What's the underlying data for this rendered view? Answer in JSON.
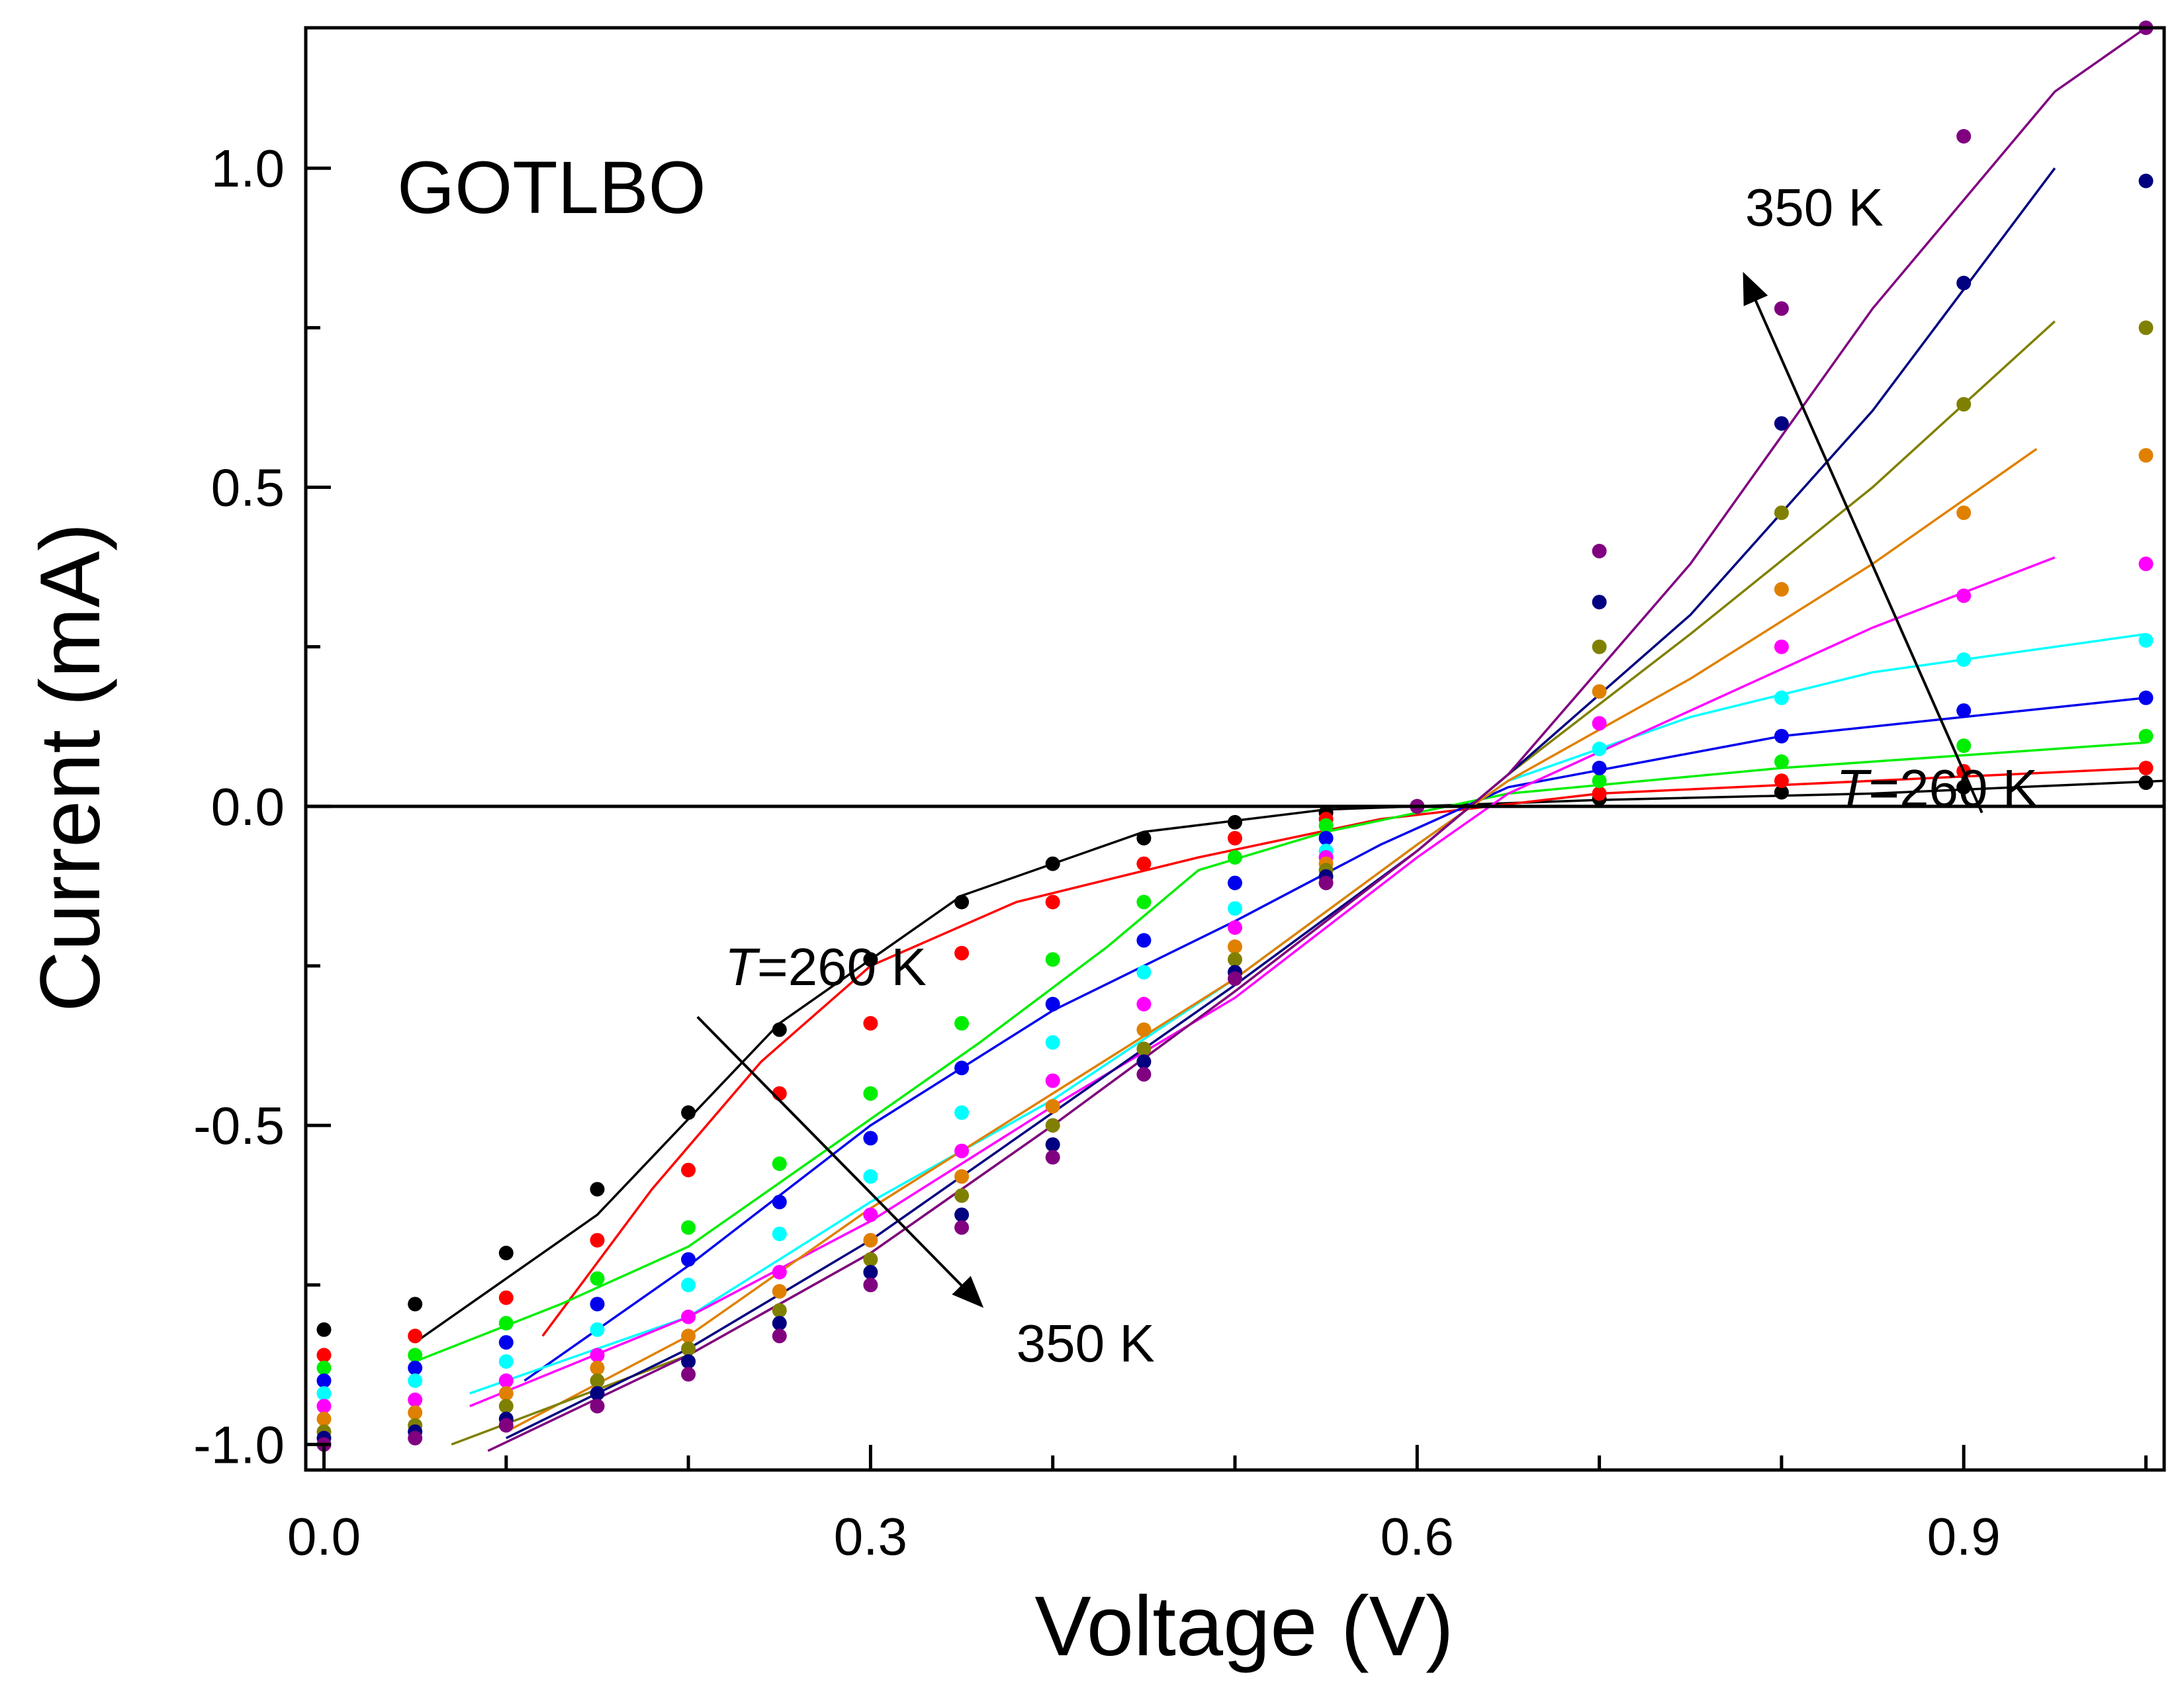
{
  "chart_data": {
    "type": "scatter",
    "title": "",
    "xlabel": "Voltage (V)",
    "ylabel": "Current (mA)",
    "xlim": [
      -0.01,
      1.01
    ],
    "ylim": [
      -1.04,
      1.22
    ],
    "xticks": [
      0.0,
      0.3,
      0.6,
      0.9
    ],
    "xtick_labels": [
      "0.0",
      "0.3",
      "0.6",
      "0.9"
    ],
    "yticks": [
      -1.0,
      -0.5,
      0.0,
      0.5,
      1.0
    ],
    "ytick_labels": [
      "-1.0",
      "-0.5",
      "0.0",
      "0.5",
      "1.0"
    ],
    "grid": false,
    "legend": "none",
    "zero_line": true,
    "panel_label": "GOTLBO",
    "annotations": [
      {
        "italic": "T",
        "rest": "=260 K",
        "at": {
          "x": 0.22,
          "y": -0.28
        }
      },
      {
        "italic": "",
        "rest": "350 K",
        "at": {
          "x": 0.38,
          "y": -0.87
        }
      },
      {
        "italic": "",
        "rest": "350 K",
        "at": {
          "x": 0.78,
          "y": 0.91
        }
      },
      {
        "italic": "T",
        "rest": "=260 K",
        "at": {
          "x": 0.83,
          "y": 0.0
        }
      }
    ],
    "arrows": [
      {
        "from": {
          "x": 0.205,
          "y": -0.33
        },
        "to": {
          "x": 0.36,
          "y": -0.78
        }
      },
      {
        "from": {
          "x": 0.91,
          "y": -0.01
        },
        "to": {
          "x": 0.78,
          "y": 0.83
        }
      }
    ],
    "series": [
      {
        "color": "#000000",
        "values": [
          [
            0.0,
            -0.82
          ],
          [
            0.05,
            -0.78
          ],
          [
            0.1,
            -0.7
          ],
          [
            0.15,
            -0.6
          ],
          [
            0.2,
            -0.48
          ],
          [
            0.25,
            -0.35
          ],
          [
            0.3,
            -0.24
          ],
          [
            0.35,
            -0.15
          ],
          [
            0.4,
            -0.09
          ],
          [
            0.45,
            -0.05
          ],
          [
            0.5,
            -0.025
          ],
          [
            0.55,
            -0.01
          ],
          [
            0.6,
            0.0
          ],
          [
            0.7,
            0.012
          ],
          [
            0.8,
            0.022
          ],
          [
            0.9,
            0.03
          ],
          [
            1.0,
            0.037
          ]
        ]
      },
      {
        "color": "#ff0000",
        "values": [
          [
            0.0,
            -0.86
          ],
          [
            0.05,
            -0.83
          ],
          [
            0.1,
            -0.77
          ],
          [
            0.15,
            -0.68
          ],
          [
            0.2,
            -0.57
          ],
          [
            0.25,
            -0.45
          ],
          [
            0.3,
            -0.34
          ],
          [
            0.35,
            -0.23
          ],
          [
            0.4,
            -0.15
          ],
          [
            0.45,
            -0.09
          ],
          [
            0.5,
            -0.05
          ],
          [
            0.55,
            -0.02
          ],
          [
            0.6,
            0.0
          ],
          [
            0.7,
            0.02
          ],
          [
            0.8,
            0.04
          ],
          [
            0.9,
            0.055
          ],
          [
            1.0,
            0.06
          ]
        ]
      },
      {
        "color": "#00ee00",
        "values": [
          [
            0.0,
            -0.88
          ],
          [
            0.05,
            -0.86
          ],
          [
            0.1,
            -0.81
          ],
          [
            0.15,
            -0.74
          ],
          [
            0.2,
            -0.66
          ],
          [
            0.25,
            -0.56
          ],
          [
            0.3,
            -0.45
          ],
          [
            0.35,
            -0.34
          ],
          [
            0.4,
            -0.24
          ],
          [
            0.45,
            -0.15
          ],
          [
            0.5,
            -0.08
          ],
          [
            0.55,
            -0.03
          ],
          [
            0.6,
            0.0
          ],
          [
            0.7,
            0.04
          ],
          [
            0.8,
            0.07
          ],
          [
            0.9,
            0.095
          ],
          [
            1.0,
            0.11
          ]
        ]
      },
      {
        "color": "#0000ee",
        "values": [
          [
            0.0,
            -0.9
          ],
          [
            0.05,
            -0.88
          ],
          [
            0.1,
            -0.84
          ],
          [
            0.15,
            -0.78
          ],
          [
            0.2,
            -0.71
          ],
          [
            0.25,
            -0.62
          ],
          [
            0.3,
            -0.52
          ],
          [
            0.35,
            -0.41
          ],
          [
            0.4,
            -0.31
          ],
          [
            0.45,
            -0.21
          ],
          [
            0.5,
            -0.12
          ],
          [
            0.55,
            -0.05
          ],
          [
            0.6,
            0.0
          ],
          [
            0.7,
            0.06
          ],
          [
            0.8,
            0.11
          ],
          [
            0.9,
            0.15
          ],
          [
            1.0,
            0.17
          ]
        ]
      },
      {
        "color": "#00ffff",
        "values": [
          [
            0.0,
            -0.92
          ],
          [
            0.05,
            -0.9
          ],
          [
            0.1,
            -0.87
          ],
          [
            0.15,
            -0.82
          ],
          [
            0.2,
            -0.75
          ],
          [
            0.25,
            -0.67
          ],
          [
            0.3,
            -0.58
          ],
          [
            0.35,
            -0.48
          ],
          [
            0.4,
            -0.37
          ],
          [
            0.45,
            -0.26
          ],
          [
            0.5,
            -0.16
          ],
          [
            0.55,
            -0.07
          ],
          [
            0.6,
            0.0
          ],
          [
            0.7,
            0.09
          ],
          [
            0.8,
            0.17
          ],
          [
            0.9,
            0.23
          ],
          [
            1.0,
            0.26
          ]
        ]
      },
      {
        "color": "#ff00ff",
        "values": [
          [
            0.0,
            -0.94
          ],
          [
            0.05,
            -0.93
          ],
          [
            0.1,
            -0.9
          ],
          [
            0.15,
            -0.86
          ],
          [
            0.2,
            -0.8
          ],
          [
            0.25,
            -0.73
          ],
          [
            0.3,
            -0.64
          ],
          [
            0.35,
            -0.54
          ],
          [
            0.4,
            -0.43
          ],
          [
            0.45,
            -0.31
          ],
          [
            0.5,
            -0.19
          ],
          [
            0.55,
            -0.08
          ],
          [
            0.6,
            0.0
          ],
          [
            0.7,
            0.13
          ],
          [
            0.8,
            0.25
          ],
          [
            0.9,
            0.33
          ],
          [
            1.0,
            0.38
          ]
        ]
      },
      {
        "color": "#e08000",
        "values": [
          [
            0.0,
            -0.96
          ],
          [
            0.05,
            -0.95
          ],
          [
            0.1,
            -0.92
          ],
          [
            0.15,
            -0.88
          ],
          [
            0.2,
            -0.83
          ],
          [
            0.25,
            -0.76
          ],
          [
            0.3,
            -0.68
          ],
          [
            0.35,
            -0.58
          ],
          [
            0.4,
            -0.47
          ],
          [
            0.45,
            -0.35
          ],
          [
            0.5,
            -0.22
          ],
          [
            0.55,
            -0.09
          ],
          [
            0.6,
            0.0
          ],
          [
            0.7,
            0.18
          ],
          [
            0.8,
            0.34
          ],
          [
            0.9,
            0.46
          ],
          [
            1.0,
            0.55
          ]
        ]
      },
      {
        "color": "#808000",
        "values": [
          [
            0.0,
            -0.98
          ],
          [
            0.05,
            -0.97
          ],
          [
            0.1,
            -0.94
          ],
          [
            0.15,
            -0.9
          ],
          [
            0.2,
            -0.85
          ],
          [
            0.25,
            -0.79
          ],
          [
            0.3,
            -0.71
          ],
          [
            0.35,
            -0.61
          ],
          [
            0.4,
            -0.5
          ],
          [
            0.45,
            -0.38
          ],
          [
            0.5,
            -0.24
          ],
          [
            0.55,
            -0.1
          ],
          [
            0.6,
            0.0
          ],
          [
            0.7,
            0.25
          ],
          [
            0.8,
            0.46
          ],
          [
            0.9,
            0.63
          ],
          [
            1.0,
            0.75
          ]
        ]
      },
      {
        "color": "#000080",
        "values": [
          [
            0.0,
            -0.99
          ],
          [
            0.05,
            -0.98
          ],
          [
            0.1,
            -0.96
          ],
          [
            0.15,
            -0.92
          ],
          [
            0.2,
            -0.87
          ],
          [
            0.25,
            -0.81
          ],
          [
            0.3,
            -0.73
          ],
          [
            0.35,
            -0.64
          ],
          [
            0.4,
            -0.53
          ],
          [
            0.45,
            -0.4
          ],
          [
            0.5,
            -0.26
          ],
          [
            0.55,
            -0.11
          ],
          [
            0.6,
            0.0
          ],
          [
            0.7,
            0.32
          ],
          [
            0.8,
            0.6
          ],
          [
            0.9,
            0.82
          ],
          [
            1.0,
            0.98
          ]
        ]
      },
      {
        "color": "#800080",
        "values": [
          [
            0.0,
            -1.0
          ],
          [
            0.05,
            -0.99
          ],
          [
            0.1,
            -0.97
          ],
          [
            0.15,
            -0.94
          ],
          [
            0.2,
            -0.89
          ],
          [
            0.25,
            -0.83
          ],
          [
            0.3,
            -0.75
          ],
          [
            0.35,
            -0.66
          ],
          [
            0.4,
            -0.55
          ],
          [
            0.45,
            -0.42
          ],
          [
            0.5,
            -0.27
          ],
          [
            0.55,
            -0.12
          ],
          [
            0.6,
            0.0
          ],
          [
            0.7,
            0.4
          ],
          [
            0.8,
            0.78
          ],
          [
            0.9,
            1.05
          ],
          [
            1.0,
            1.22
          ]
        ]
      }
    ],
    "fits": [
      {
        "color": "#000000",
        "values": [
          [
            0.05,
            -0.84
          ],
          [
            0.15,
            -0.64
          ],
          [
            0.25,
            -0.34
          ],
          [
            0.35,
            -0.14
          ],
          [
            0.45,
            -0.04
          ],
          [
            0.55,
            -0.005
          ],
          [
            0.7,
            0.01
          ],
          [
            0.85,
            0.02
          ],
          [
            1.01,
            0.04
          ]
        ]
      },
      {
        "color": "#ff0000",
        "values": [
          [
            0.12,
            -0.83
          ],
          [
            0.18,
            -0.6
          ],
          [
            0.24,
            -0.4
          ],
          [
            0.3,
            -0.25
          ],
          [
            0.38,
            -0.15
          ],
          [
            0.48,
            -0.08
          ],
          [
            0.58,
            -0.02
          ],
          [
            0.7,
            0.02
          ],
          [
            0.85,
            0.04
          ],
          [
            1.0,
            0.06
          ]
        ]
      },
      {
        "color": "#00ee00",
        "values": [
          [
            0.05,
            -0.87
          ],
          [
            0.13,
            -0.78
          ],
          [
            0.2,
            -0.69
          ],
          [
            0.28,
            -0.53
          ],
          [
            0.36,
            -0.37
          ],
          [
            0.43,
            -0.22
          ],
          [
            0.48,
            -0.1
          ],
          [
            0.55,
            -0.04
          ],
          [
            0.65,
            0.02
          ],
          [
            0.8,
            0.06
          ],
          [
            1.0,
            0.1
          ]
        ]
      },
      {
        "color": "#0000ee",
        "values": [
          [
            0.11,
            -0.9
          ],
          [
            0.2,
            -0.72
          ],
          [
            0.3,
            -0.5
          ],
          [
            0.4,
            -0.32
          ],
          [
            0.5,
            -0.18
          ],
          [
            0.58,
            -0.06
          ],
          [
            0.65,
            0.03
          ],
          [
            0.8,
            0.11
          ],
          [
            1.0,
            0.17
          ]
        ]
      },
      {
        "color": "#00ffff",
        "values": [
          [
            0.08,
            -0.92
          ],
          [
            0.2,
            -0.8
          ],
          [
            0.3,
            -0.62
          ],
          [
            0.4,
            -0.46
          ],
          [
            0.5,
            -0.27
          ],
          [
            0.6,
            -0.06
          ],
          [
            0.65,
            0.04
          ],
          [
            0.75,
            0.14
          ],
          [
            0.85,
            0.21
          ],
          [
            1.0,
            0.27
          ]
        ]
      },
      {
        "color": "#ff00ff",
        "values": [
          [
            0.08,
            -0.94
          ],
          [
            0.2,
            -0.8
          ],
          [
            0.3,
            -0.65
          ],
          [
            0.4,
            -0.47
          ],
          [
            0.5,
            -0.3
          ],
          [
            0.6,
            -0.08
          ],
          [
            0.65,
            0.02
          ],
          [
            0.75,
            0.15
          ],
          [
            0.85,
            0.28
          ],
          [
            0.95,
            0.39
          ]
        ]
      },
      {
        "color": "#e08000",
        "values": [
          [
            0.1,
            -0.98
          ],
          [
            0.2,
            -0.83
          ],
          [
            0.3,
            -0.63
          ],
          [
            0.4,
            -0.45
          ],
          [
            0.5,
            -0.27
          ],
          [
            0.6,
            -0.06
          ],
          [
            0.65,
            0.04
          ],
          [
            0.75,
            0.2
          ],
          [
            0.85,
            0.38
          ],
          [
            0.94,
            0.56
          ]
        ]
      },
      {
        "color": "#808000",
        "values": [
          [
            0.07,
            -1.0
          ],
          [
            0.2,
            -0.86
          ],
          [
            0.3,
            -0.7
          ],
          [
            0.4,
            -0.5
          ],
          [
            0.5,
            -0.29
          ],
          [
            0.6,
            -0.07
          ],
          [
            0.65,
            0.05
          ],
          [
            0.75,
            0.27
          ],
          [
            0.85,
            0.5
          ],
          [
            0.95,
            0.76
          ]
        ]
      },
      {
        "color": "#000080",
        "values": [
          [
            0.1,
            -0.99
          ],
          [
            0.2,
            -0.85
          ],
          [
            0.3,
            -0.68
          ],
          [
            0.4,
            -0.48
          ],
          [
            0.5,
            -0.28
          ],
          [
            0.6,
            -0.07
          ],
          [
            0.65,
            0.05
          ],
          [
            0.75,
            0.3
          ],
          [
            0.85,
            0.62
          ],
          [
            0.95,
            1.0
          ]
        ]
      },
      {
        "color": "#800080",
        "values": [
          [
            0.09,
            -1.01
          ],
          [
            0.2,
            -0.86
          ],
          [
            0.3,
            -0.7
          ],
          [
            0.4,
            -0.5
          ],
          [
            0.5,
            -0.29
          ],
          [
            0.6,
            -0.07
          ],
          [
            0.65,
            0.05
          ],
          [
            0.75,
            0.38
          ],
          [
            0.85,
            0.78
          ],
          [
            0.95,
            1.12
          ],
          [
            1.0,
            1.22
          ]
        ]
      }
    ]
  }
}
